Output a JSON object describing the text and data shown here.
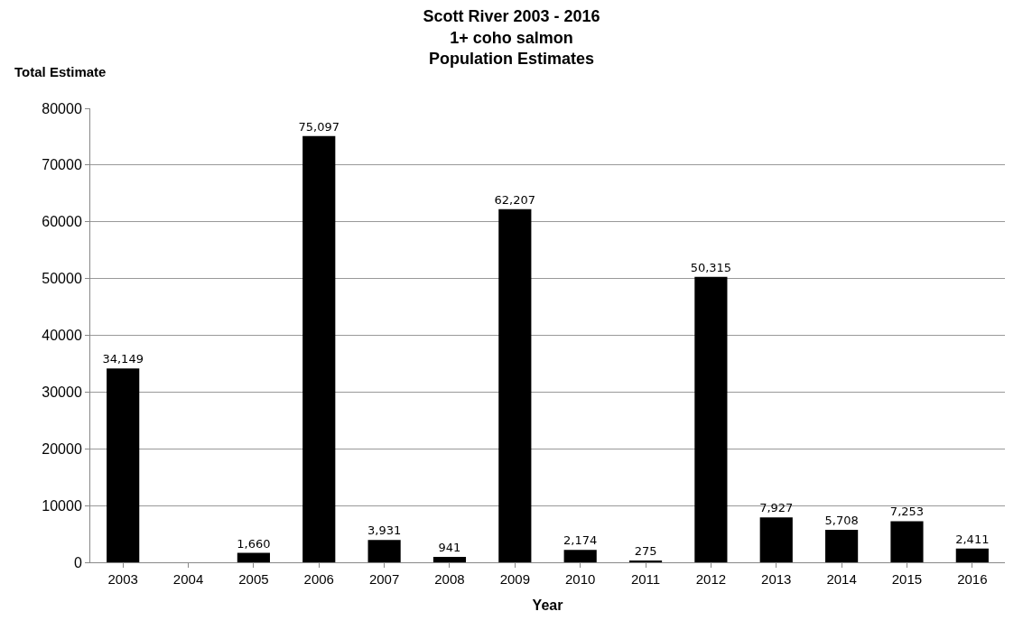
{
  "chart_data": {
    "type": "bar",
    "title": "Scott River 2003 - 2016\n1+ coho salmon\nPopulation Estimates",
    "xlabel": "Year",
    "ylabel": "Total Estimate",
    "categories": [
      "2003",
      "2004",
      "2005",
      "2006",
      "2007",
      "2008",
      "2009",
      "2010",
      "2011",
      "2012",
      "2013",
      "2014",
      "2015",
      "2016"
    ],
    "values": [
      34149,
      null,
      1660,
      75097,
      3931,
      941,
      62207,
      2174,
      275,
      50315,
      7927,
      5708,
      7253,
      2411
    ],
    "value_labels": [
      "34,149",
      null,
      "1,660",
      "75,097",
      "3,931",
      "941",
      "62,207",
      "2,174",
      "275",
      "50,315",
      "7,927",
      "5,708",
      "7,253",
      "2,411"
    ],
    "color": "#000000",
    "ylim": [
      0,
      80000
    ],
    "yticks": [
      0,
      10000,
      20000,
      30000,
      40000,
      50000,
      60000,
      70000,
      80000
    ],
    "grid": "y"
  }
}
